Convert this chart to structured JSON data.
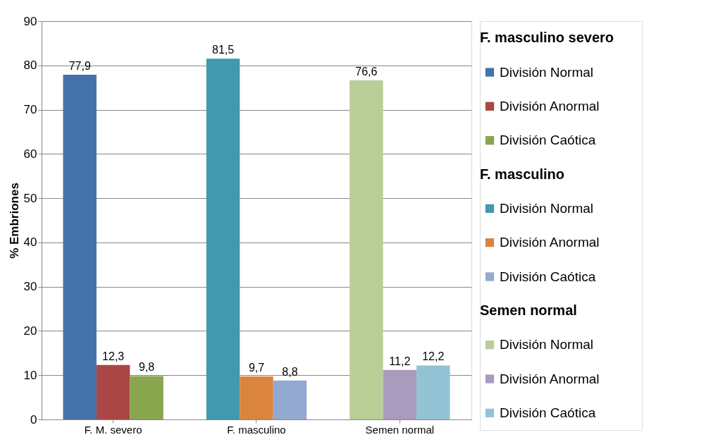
{
  "chart_data": {
    "type": "bar",
    "ylabel": "% Embriones",
    "categories": [
      "F. M. severo",
      "F. masculino",
      "Semen normal"
    ],
    "series": [
      {
        "name": "División Normal",
        "color": "#4672aa",
        "values": [
          77.9,
          null,
          null
        ],
        "value_labels": [
          "77,9",
          null,
          null
        ]
      },
      {
        "name": "División Anormal",
        "color": "#aa4643",
        "values": [
          12.3,
          null,
          null
        ],
        "value_labels": [
          "12,3",
          null,
          null
        ]
      },
      {
        "name": "División Caótica",
        "color": "#89a54e",
        "values": [
          9.8,
          null,
          null
        ],
        "value_labels": [
          "9,8",
          null,
          null
        ]
      },
      {
        "name": "División Normal",
        "color": "#4198af",
        "values": [
          null,
          81.5,
          null
        ],
        "value_labels": [
          null,
          "81,5",
          null
        ]
      },
      {
        "name": "División Anormal",
        "color": "#db843d",
        "values": [
          null,
          9.7,
          null
        ],
        "value_labels": [
          null,
          "9,7",
          null
        ]
      },
      {
        "name": "División Caótica",
        "color": "#93a9cf",
        "values": [
          null,
          8.8,
          null
        ],
        "value_labels": [
          null,
          "8,8",
          null
        ]
      },
      {
        "name": "División Normal",
        "color": "#b9cd96",
        "values": [
          null,
          null,
          76.6
        ],
        "value_labels": [
          null,
          null,
          "76,6"
        ]
      },
      {
        "name": "División Anormal",
        "color": "#a99bbd",
        "values": [
          null,
          null,
          11.2
        ],
        "value_labels": [
          null,
          null,
          "11,2"
        ]
      },
      {
        "name": "División Caótica",
        "color": "#92c3d4",
        "values": [
          null,
          null,
          12.2
        ],
        "value_labels": [
          null,
          null,
          "12,2"
        ]
      }
    ],
    "annotations": [
      "F. masculino severo",
      "F. masculino",
      "Semen normal"
    ],
    "ylim": [
      0,
      90
    ],
    "yticks": [
      0,
      10,
      20,
      30,
      40,
      50,
      60,
      70,
      80,
      90
    ],
    "grid": "y",
    "legend": "right"
  }
}
